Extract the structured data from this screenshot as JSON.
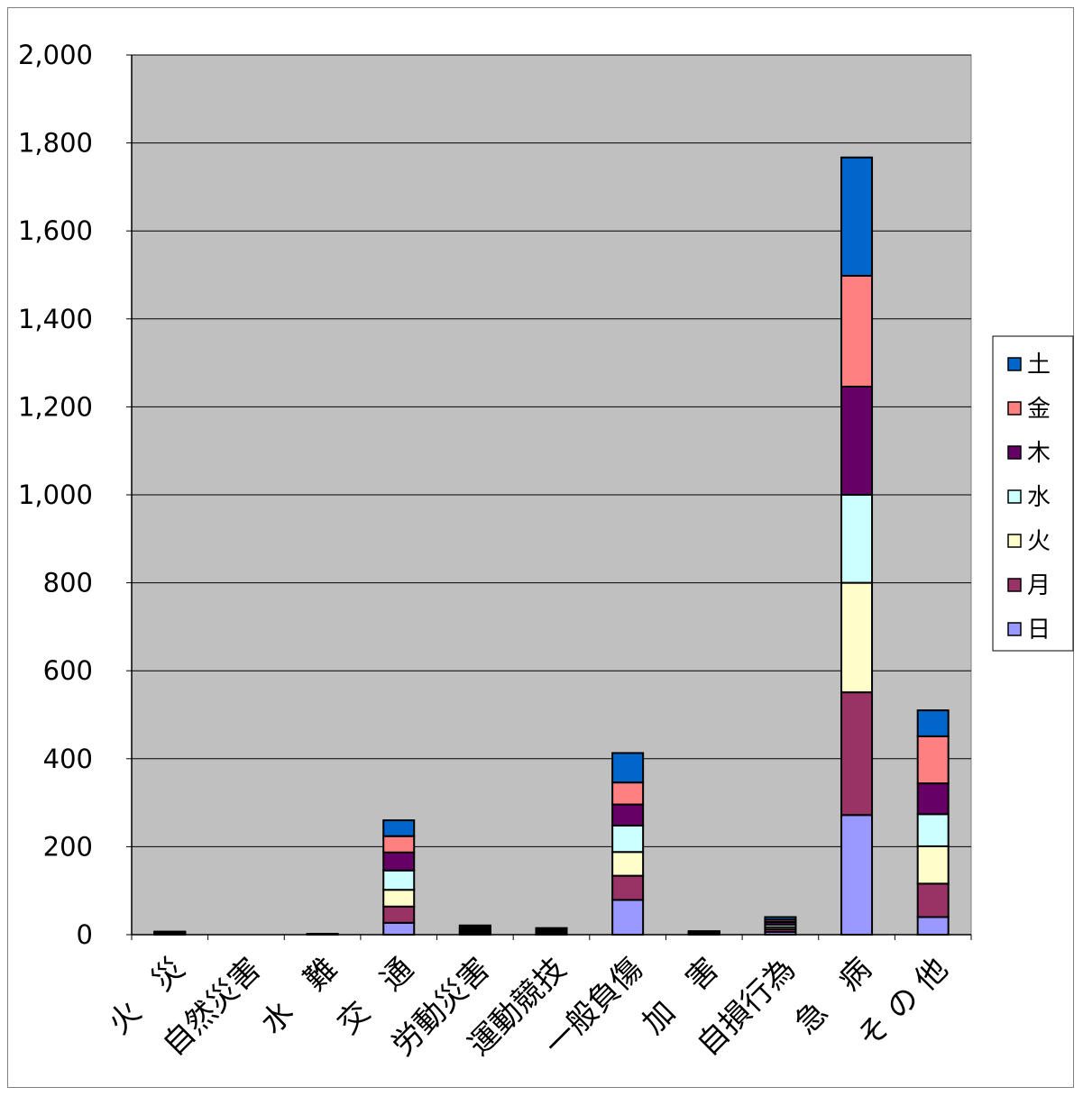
{
  "chart_data": {
    "type": "bar",
    "stacked": true,
    "title": "",
    "xlabel": "",
    "ylabel": "",
    "ylim": [
      0,
      2000
    ],
    "yticks": [
      0,
      200,
      400,
      600,
      800,
      1000,
      1200,
      1400,
      1600,
      1800,
      2000
    ],
    "ytick_labels": [
      "0",
      "200",
      "400",
      "600",
      "800",
      "1,000",
      "1,200",
      "1,400",
      "1,600",
      "1,800",
      "2,000"
    ],
    "grid": true,
    "legend_position": "right",
    "plot_background": "#c0c0c0",
    "categories": [
      "火　災",
      "自然災害",
      "水　難",
      "交　通",
      "労動災害",
      "運動競技",
      "一般負傷",
      "加　害",
      "自損行為",
      "急　病",
      "そ の 他"
    ],
    "series": [
      {
        "name": "日",
        "color": "#9999ff",
        "values": [
          1,
          0,
          0,
          27,
          3,
          2,
          79,
          1,
          6,
          272,
          40
        ]
      },
      {
        "name": "月",
        "color": "#993366",
        "values": [
          1,
          0,
          0,
          37,
          3,
          2,
          55,
          1,
          6,
          279,
          76
        ]
      },
      {
        "name": "火",
        "color": "#ffffcc",
        "values": [
          1,
          0,
          1,
          38,
          3,
          3,
          54,
          2,
          5,
          249,
          85
        ]
      },
      {
        "name": "水",
        "color": "#ccffff",
        "values": [
          1,
          0,
          0,
          44,
          3,
          2,
          60,
          1,
          6,
          200,
          73
        ]
      },
      {
        "name": "木",
        "color": "#660066",
        "values": [
          1,
          0,
          0,
          41,
          3,
          2,
          48,
          1,
          6,
          246,
          70
        ]
      },
      {
        "name": "金",
        "color": "#ff8080",
        "values": [
          1,
          0,
          1,
          37,
          3,
          2,
          50,
          1,
          5,
          252,
          107
        ]
      },
      {
        "name": "土",
        "color": "#0066cc",
        "values": [
          1,
          0,
          0,
          36,
          3,
          2,
          67,
          1,
          6,
          269,
          59
        ]
      }
    ]
  }
}
